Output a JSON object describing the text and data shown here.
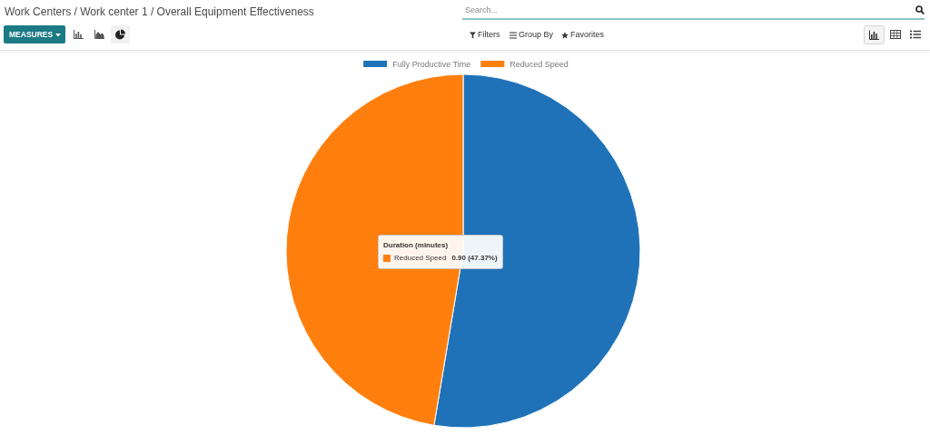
{
  "chart_data": {
    "type": "pie",
    "title": "Work Centers / Work center 1 / Overall Equipment Effectiveness",
    "categories": [
      "Fully Productive Time",
      "Reduced Speed"
    ],
    "values": [
      1.0,
      0.9
    ],
    "colors": [
      "#1f72b8",
      "#ff7f0e"
    ],
    "value_labels": [
      null,
      "0.90 (47.37%)"
    ],
    "legend": "top",
    "annotations": [
      "MEASURES",
      "Search...",
      "Filters",
      "Group By",
      "Favorites",
      "Duration (minutes)"
    ]
  }
}
